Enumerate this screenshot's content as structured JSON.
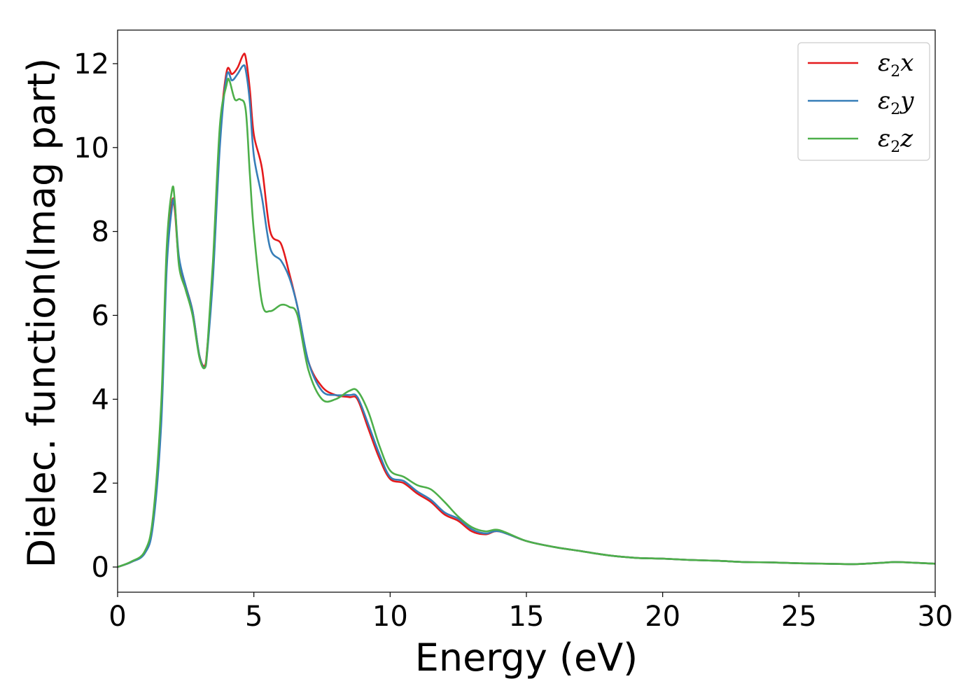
{
  "chart_data": {
    "type": "line",
    "title": "",
    "xlabel": "Energy (eV)",
    "ylabel": "Dielec. function(Imag part)",
    "xlim": [
      0,
      30
    ],
    "ylim": [
      -0.6,
      12.8
    ],
    "xticks": [
      "0",
      "5",
      "10",
      "15",
      "20",
      "25",
      "30"
    ],
    "yticks": [
      "0",
      "2",
      "4",
      "6",
      "8",
      "10",
      "12"
    ],
    "grid": false,
    "legend_position": "top-right",
    "series": [
      {
        "name": "ε2x",
        "legend": {
          "base": "ε",
          "sub": "2",
          "var": "x"
        },
        "color": "#e41a1c",
        "x": [
          0,
          0.5,
          1.0,
          1.3,
          1.6,
          1.8,
          2.0,
          2.1,
          2.25,
          2.5,
          2.75,
          3.0,
          3.2,
          3.3,
          3.5,
          3.75,
          4.0,
          4.2,
          4.4,
          4.6,
          4.7,
          4.85,
          5.0,
          5.3,
          5.6,
          6.0,
          6.3,
          6.6,
          7.0,
          7.5,
          8.0,
          8.5,
          8.8,
          9.2,
          9.6,
          10.0,
          10.5,
          11.0,
          11.5,
          12.0,
          12.5,
          13.0,
          13.5,
          14.0,
          15.0,
          16.0,
          17.0,
          18.0,
          19.0,
          20.0,
          21.0,
          22.0,
          23.0,
          24.0,
          25.0,
          26.0,
          27.0,
          28.0,
          28.5,
          29.0,
          30.0
        ],
        "values": [
          0.0,
          0.12,
          0.35,
          1.1,
          3.6,
          7.3,
          8.7,
          8.5,
          7.3,
          6.7,
          6.1,
          5.05,
          4.8,
          5.3,
          7.0,
          10.2,
          11.8,
          11.75,
          11.9,
          12.2,
          12.15,
          11.4,
          10.3,
          9.5,
          8.0,
          7.7,
          7.0,
          6.2,
          4.9,
          4.3,
          4.1,
          4.05,
          4.0,
          3.3,
          2.6,
          2.1,
          2.0,
          1.75,
          1.55,
          1.25,
          1.1,
          0.85,
          0.78,
          0.85,
          0.62,
          0.48,
          0.38,
          0.28,
          0.22,
          0.2,
          0.17,
          0.15,
          0.12,
          0.11,
          0.09,
          0.08,
          0.07,
          0.1,
          0.12,
          0.11,
          0.08
        ]
      },
      {
        "name": "ε2y",
        "legend": {
          "base": "ε",
          "sub": "2",
          "var": "y"
        },
        "color": "#377eb8",
        "x": [
          0,
          0.5,
          1.0,
          1.3,
          1.6,
          1.8,
          2.0,
          2.1,
          2.25,
          2.5,
          2.75,
          3.0,
          3.2,
          3.3,
          3.5,
          3.75,
          4.0,
          4.2,
          4.4,
          4.6,
          4.7,
          4.85,
          5.0,
          5.3,
          5.6,
          6.0,
          6.3,
          6.6,
          7.0,
          7.5,
          8.0,
          8.5,
          8.8,
          9.2,
          9.6,
          10.0,
          10.5,
          11.0,
          11.5,
          12.0,
          12.5,
          13.0,
          13.5,
          14.0,
          15.0,
          16.0,
          17.0,
          18.0,
          19.0,
          20.0,
          21.0,
          22.0,
          23.0,
          24.0,
          25.0,
          26.0,
          27.0,
          28.0,
          28.5,
          29.0,
          30.0
        ],
        "values": [
          0.0,
          0.12,
          0.33,
          1.0,
          3.4,
          7.1,
          8.6,
          8.6,
          7.4,
          6.7,
          6.1,
          5.05,
          4.75,
          5.2,
          6.9,
          10.0,
          11.7,
          11.6,
          11.75,
          11.95,
          11.85,
          11.1,
          9.8,
          8.8,
          7.6,
          7.3,
          6.9,
          6.2,
          4.9,
          4.2,
          4.1,
          4.1,
          4.05,
          3.4,
          2.7,
          2.15,
          2.05,
          1.8,
          1.6,
          1.3,
          1.15,
          0.9,
          0.8,
          0.85,
          0.62,
          0.48,
          0.38,
          0.28,
          0.22,
          0.2,
          0.17,
          0.15,
          0.12,
          0.11,
          0.09,
          0.08,
          0.07,
          0.1,
          0.12,
          0.11,
          0.08
        ]
      },
      {
        "name": "ε2z",
        "legend": {
          "base": "ε",
          "sub": "2",
          "var": "z"
        },
        "color": "#4daf4a",
        "x": [
          0,
          0.5,
          1.0,
          1.3,
          1.6,
          1.8,
          2.0,
          2.1,
          2.25,
          2.5,
          2.75,
          3.0,
          3.2,
          3.3,
          3.5,
          3.75,
          4.0,
          4.1,
          4.3,
          4.5,
          4.7,
          4.85,
          5.0,
          5.3,
          5.6,
          6.0,
          6.3,
          6.6,
          7.0,
          7.5,
          8.0,
          8.5,
          8.8,
          9.2,
          9.6,
          10.0,
          10.5,
          11.0,
          11.5,
          12.0,
          12.5,
          13.0,
          13.5,
          14.0,
          15.0,
          16.0,
          17.0,
          18.0,
          19.0,
          20.0,
          21.0,
          22.0,
          23.0,
          24.0,
          25.0,
          26.0,
          27.0,
          28.0,
          28.5,
          29.0,
          30.0
        ],
        "values": [
          0.0,
          0.13,
          0.38,
          1.2,
          3.9,
          7.6,
          9.0,
          8.7,
          7.2,
          6.6,
          6.0,
          5.0,
          4.75,
          5.3,
          7.3,
          10.5,
          11.5,
          11.6,
          11.15,
          11.15,
          10.9,
          9.4,
          8.0,
          6.3,
          6.1,
          6.25,
          6.2,
          6.0,
          4.7,
          4.0,
          4.0,
          4.2,
          4.2,
          3.7,
          2.9,
          2.3,
          2.15,
          1.95,
          1.85,
          1.55,
          1.2,
          0.95,
          0.85,
          0.88,
          0.62,
          0.48,
          0.38,
          0.28,
          0.22,
          0.2,
          0.17,
          0.15,
          0.12,
          0.11,
          0.09,
          0.08,
          0.07,
          0.1,
          0.12,
          0.11,
          0.08
        ]
      }
    ]
  }
}
